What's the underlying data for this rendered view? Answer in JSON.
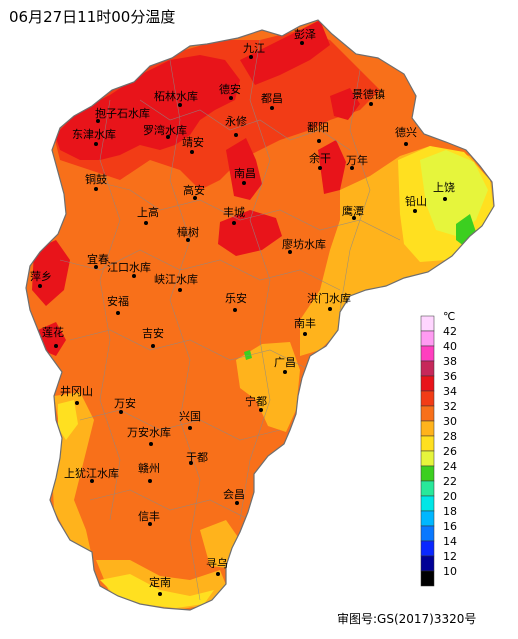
{
  "title": "06月27日11时00分温度",
  "approval_number": "审图号:GS(2017)3320号",
  "legend": {
    "unit": "℃",
    "classes": [
      {
        "label": "42",
        "color": "#ffd6ff"
      },
      {
        "label": "40",
        "color": "#ff9bf2"
      },
      {
        "label": "38",
        "color": "#ff3fbf"
      },
      {
        "label": "36",
        "color": "#c6285a"
      },
      {
        "label": "34",
        "color": "#e8141a"
      },
      {
        "label": "32",
        "color": "#f23c16"
      },
      {
        "label": "30",
        "color": "#f8701a"
      },
      {
        "label": "28",
        "color": "#ffb31c"
      },
      {
        "label": "26",
        "color": "#ffe020"
      },
      {
        "label": "24",
        "color": "#e6f53c"
      },
      {
        "label": "22",
        "color": "#3ccf20"
      },
      {
        "label": "20",
        "color": "#28e89a"
      },
      {
        "label": "18",
        "color": "#00e6e6"
      },
      {
        "label": "16",
        "color": "#00b7ff"
      },
      {
        "label": "14",
        "color": "#0a78ff"
      },
      {
        "label": "12",
        "color": "#0a28ff"
      },
      {
        "label": "10",
        "color": "#000096"
      },
      {
        "label": "",
        "color": "#000000"
      }
    ]
  },
  "cities": [
    {
      "name": "九江"
    },
    {
      "name": "彭泽"
    },
    {
      "name": "柘林水库"
    },
    {
      "name": "德安"
    },
    {
      "name": "都昌"
    },
    {
      "name": "景德镇"
    },
    {
      "name": "抱子石水库"
    },
    {
      "name": "罗湾水库"
    },
    {
      "name": "永修"
    },
    {
      "name": "东津水库"
    },
    {
      "name": "靖安"
    },
    {
      "name": "鄱阳"
    },
    {
      "name": "德兴"
    },
    {
      "name": "铜鼓"
    },
    {
      "name": "余干"
    },
    {
      "name": "万年"
    },
    {
      "name": "南昌"
    },
    {
      "name": "上饶"
    },
    {
      "name": "高安"
    },
    {
      "name": "铅山"
    },
    {
      "name": "上高"
    },
    {
      "name": "丰城"
    },
    {
      "name": "鹰潭"
    },
    {
      "name": "樟树"
    },
    {
      "name": "廖坊水库"
    },
    {
      "name": "宜春"
    },
    {
      "name": "江口水库"
    },
    {
      "name": "萍乡"
    },
    {
      "name": "峡江水库"
    },
    {
      "name": "安福"
    },
    {
      "name": "乐安"
    },
    {
      "name": "洪门水库"
    },
    {
      "name": "南丰"
    },
    {
      "name": "莲花"
    },
    {
      "name": "吉安"
    },
    {
      "name": "广昌"
    },
    {
      "name": "井冈山"
    },
    {
      "name": "万安"
    },
    {
      "name": "宁都"
    },
    {
      "name": "兴国"
    },
    {
      "name": "万安水库"
    },
    {
      "name": "于都"
    },
    {
      "name": "上犹江水库"
    },
    {
      "name": "赣州"
    },
    {
      "name": "会昌"
    },
    {
      "name": "信丰"
    },
    {
      "name": "寻乌"
    },
    {
      "name": "定南"
    }
  ]
}
